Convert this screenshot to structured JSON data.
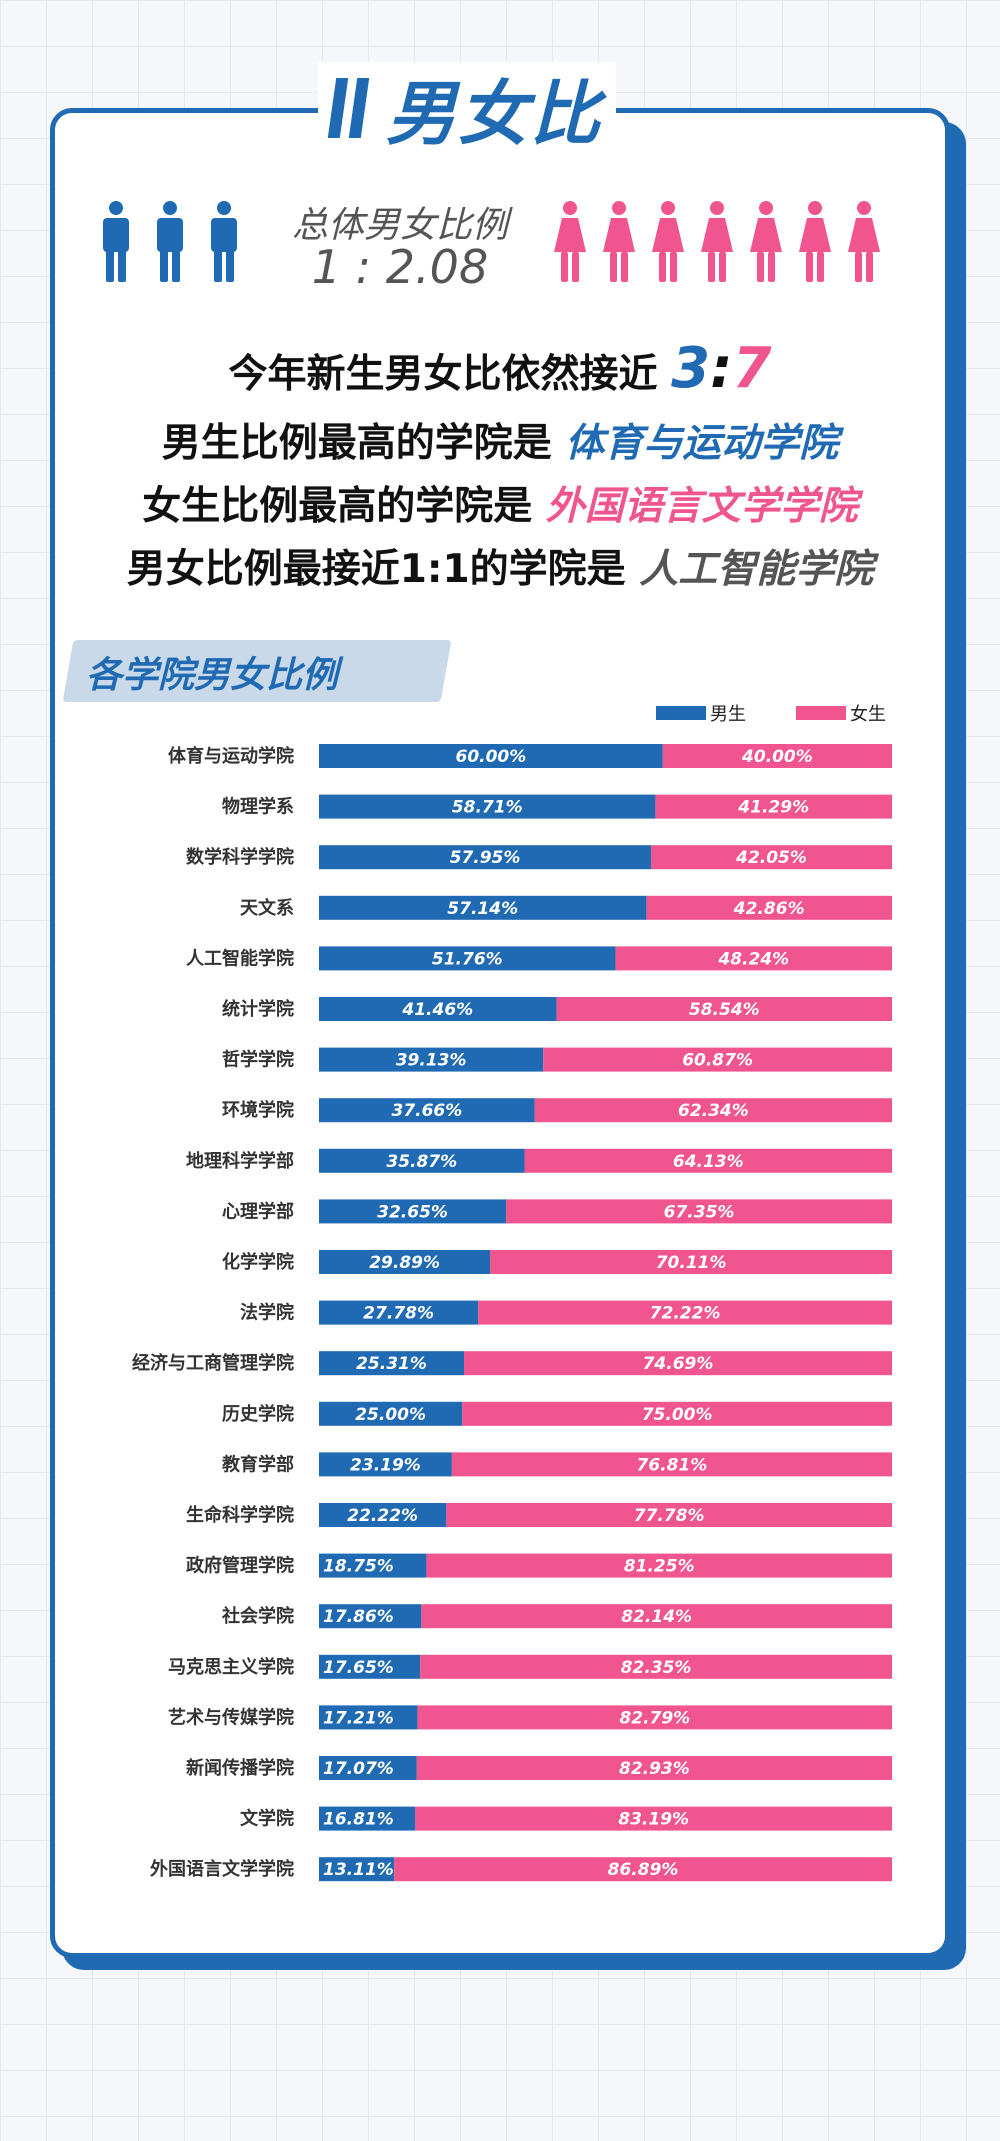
{
  "title": "男女比",
  "overall": {
    "label": "总体男女比例",
    "value": "1 : 2.08"
  },
  "headlines": {
    "line1_prefix": "今年新生男女比依然接近",
    "ratio_male": "3",
    "ratio_colon": ":",
    "ratio_female": "7",
    "line2_prefix": "男生比例最高的学院是",
    "line2_value": "体育与运动学院",
    "line3_prefix": "女生比例最高的学院是",
    "line3_value": "外国语言文学学院",
    "line4_prefix": "男女比例最接近1:1的学院是",
    "line4_value": "人工智能学院"
  },
  "section_title": "各学院男女比例",
  "colors": {
    "male": "#1f6ab3",
    "female": "#f0558f"
  },
  "icons": {
    "male": "male-person-icon",
    "female": "female-person-icon",
    "male_count": 3,
    "female_count": 7
  },
  "chart_data": {
    "type": "bar",
    "orientation": "horizontal",
    "stacked": true,
    "title": "各学院男女比例",
    "legend_position": "top-right",
    "xlim": [
      0,
      100
    ],
    "categories": [
      "体育与运动学院",
      "物理学系",
      "数学科学学院",
      "天文系",
      "人工智能学院",
      "统计学院",
      "哲学学院",
      "环境学院",
      "地理科学学部",
      "心理学部",
      "化学学院",
      "法学院",
      "经济与工商管理学院",
      "历史学院",
      "教育学部",
      "生命科学学院",
      "政府管理学院",
      "社会学院",
      "马克思主义学院",
      "艺术与传媒学院",
      "新闻传播学院",
      "文学院",
      "外国语言文学学院"
    ],
    "series": [
      {
        "name": "男生",
        "color": "#1f6ab3",
        "values": [
          60.0,
          58.71,
          57.95,
          57.14,
          51.76,
          41.46,
          39.13,
          37.66,
          35.87,
          32.65,
          29.89,
          27.78,
          25.31,
          25.0,
          23.19,
          22.22,
          18.75,
          17.86,
          17.65,
          17.21,
          17.07,
          16.81,
          13.11
        ],
        "labels": [
          "60.00%",
          "58.71%",
          "57.95%",
          "57.14%",
          "51.76%",
          "41.46%",
          "39.13%",
          "37.66%",
          "35.87%",
          "32.65%",
          "29.89%",
          "27.78%",
          "25.31%",
          "25.00%",
          "23.19%",
          "22.22%",
          "18.75%",
          "17.86%",
          "17.65%",
          "17.21%",
          "17.07%",
          "16.81%",
          "13.11%"
        ]
      },
      {
        "name": "女生",
        "color": "#f0558f",
        "values": [
          40.0,
          41.29,
          42.05,
          42.86,
          48.24,
          58.54,
          60.87,
          62.34,
          64.13,
          67.35,
          70.11,
          72.22,
          74.69,
          75.0,
          76.81,
          77.78,
          81.25,
          82.14,
          82.35,
          82.79,
          82.93,
          83.19,
          86.89
        ],
        "labels": [
          "40.00%",
          "41.29%",
          "42.05%",
          "42.86%",
          "48.24%",
          "58.54%",
          "60.87%",
          "62.34%",
          "64.13%",
          "67.35%",
          "70.11%",
          "72.22%",
          "74.69%",
          "75.00%",
          "76.81%",
          "77.78%",
          "81.25%",
          "82.14%",
          "82.35%",
          "82.79%",
          "82.93%",
          "83.19%",
          "86.89%"
        ]
      }
    ]
  }
}
